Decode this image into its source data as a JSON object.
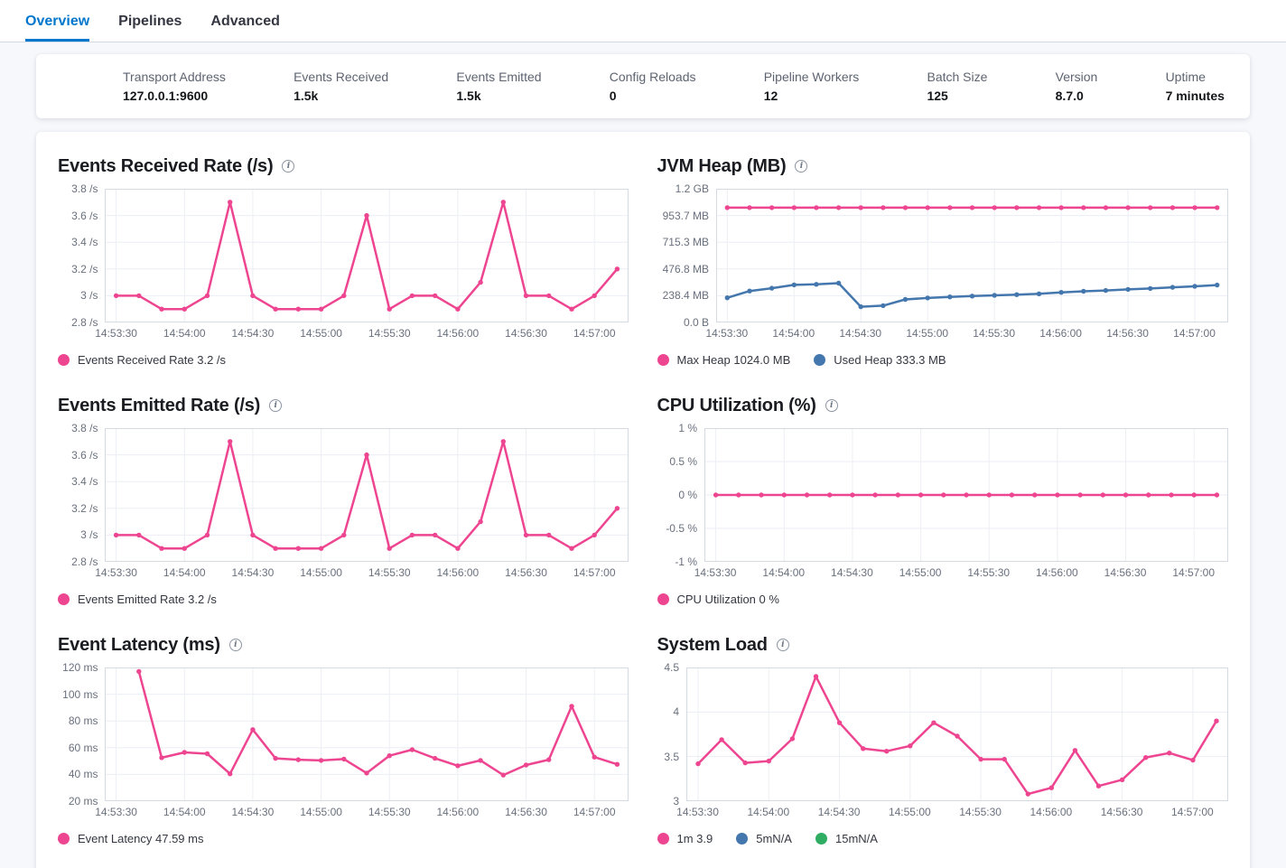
{
  "tabs": [
    {
      "label": "Overview",
      "active": true
    },
    {
      "label": "Pipelines",
      "active": false
    },
    {
      "label": "Advanced",
      "active": false
    }
  ],
  "stats": [
    {
      "label": "Transport Address",
      "value": "127.0.0.1:9600"
    },
    {
      "label": "Events Received",
      "value": "1.5k"
    },
    {
      "label": "Events Emitted",
      "value": "1.5k"
    },
    {
      "label": "Config Reloads",
      "value": "0"
    },
    {
      "label": "Pipeline Workers",
      "value": "12"
    },
    {
      "label": "Batch Size",
      "value": "125"
    },
    {
      "label": "Version",
      "value": "8.7.0"
    },
    {
      "label": "Uptime",
      "value": "7 minutes"
    }
  ],
  "colors": {
    "pink": "#ee4591",
    "blue": "#4477ad",
    "green": "#2fad63",
    "tab_blue": "#0077cc"
  },
  "chart_data": [
    {
      "id": "events-received-rate",
      "type": "line",
      "title": "Events Received Rate (/s)",
      "x_tick_labels": [
        "14:53:30",
        "14:54:00",
        "14:54:30",
        "14:55:00",
        "14:55:30",
        "14:56:00",
        "14:56:30",
        "14:57:00"
      ],
      "x_tick_seconds": [
        0,
        30,
        60,
        90,
        120,
        150,
        180,
        210
      ],
      "x_domain_seconds": [
        -5,
        225
      ],
      "point_interval_seconds": 10,
      "y_domain": [
        2.8,
        3.8
      ],
      "y_ticks": [
        {
          "v": 3.8,
          "label": "3.8 /s"
        },
        {
          "v": 3.6,
          "label": "3.6 /s"
        },
        {
          "v": 3.4,
          "label": "3.4 /s"
        },
        {
          "v": 3.2,
          "label": "3.2 /s"
        },
        {
          "v": 3.0,
          "label": "3 /s"
        },
        {
          "v": 2.8,
          "label": "2.8 /s"
        }
      ],
      "series": [
        {
          "name": "Events Received Rate",
          "color": "pink",
          "start_second": 0,
          "values": [
            3,
            3,
            2.9,
            2.9,
            3,
            3.7,
            3,
            2.9,
            2.9,
            2.9,
            3,
            3.6,
            2.9,
            3,
            3,
            2.9,
            3.1,
            3.7,
            3,
            3,
            2.9,
            3,
            3.2
          ]
        }
      ],
      "legend": [
        {
          "color": "pink",
          "label": "Events Received Rate 3.2 /s"
        }
      ]
    },
    {
      "id": "jvm-heap",
      "type": "line",
      "title": "JVM Heap (MB)",
      "x_tick_labels": [
        "14:53:30",
        "14:54:00",
        "14:54:30",
        "14:55:00",
        "14:55:30",
        "14:56:00",
        "14:56:30",
        "14:57:00"
      ],
      "x_tick_seconds": [
        0,
        30,
        60,
        90,
        120,
        150,
        180,
        210
      ],
      "x_domain_seconds": [
        -5,
        225
      ],
      "point_interval_seconds": 10,
      "y_domain": [
        0,
        1192
      ],
      "y_ticks": [
        {
          "v": 1192,
          "label": "1.2 GB"
        },
        {
          "v": 953.7,
          "label": "953.7 MB"
        },
        {
          "v": 715.3,
          "label": "715.3 MB"
        },
        {
          "v": 476.8,
          "label": "476.8 MB"
        },
        {
          "v": 238.4,
          "label": "238.4 MB"
        },
        {
          "v": 0,
          "label": "0.0 B"
        }
      ],
      "series": [
        {
          "name": "Max Heap",
          "color": "pink",
          "start_second": 0,
          "values": [
            1024,
            1024,
            1024,
            1024,
            1024,
            1024,
            1024,
            1024,
            1024,
            1024,
            1024,
            1024,
            1024,
            1024,
            1024,
            1024,
            1024,
            1024,
            1024,
            1024,
            1024,
            1024,
            1024
          ]
        },
        {
          "name": "Used Heap",
          "color": "blue",
          "start_second": 0,
          "values": [
            220,
            280,
            305,
            335,
            340,
            350,
            140,
            150,
            205,
            218,
            228,
            235,
            242,
            248,
            255,
            268,
            278,
            285,
            295,
            303,
            313,
            322,
            333.3
          ]
        }
      ],
      "legend": [
        {
          "color": "pink",
          "label": "Max Heap 1024.0 MB"
        },
        {
          "color": "blue",
          "label": "Used Heap 333.3 MB"
        }
      ]
    },
    {
      "id": "events-emitted-rate",
      "type": "line",
      "title": "Events Emitted Rate (/s)",
      "x_tick_labels": [
        "14:53:30",
        "14:54:00",
        "14:54:30",
        "14:55:00",
        "14:55:30",
        "14:56:00",
        "14:56:30",
        "14:57:00"
      ],
      "x_tick_seconds": [
        0,
        30,
        60,
        90,
        120,
        150,
        180,
        210
      ],
      "x_domain_seconds": [
        -5,
        225
      ],
      "point_interval_seconds": 10,
      "y_domain": [
        2.8,
        3.8
      ],
      "y_ticks": [
        {
          "v": 3.8,
          "label": "3.8 /s"
        },
        {
          "v": 3.6,
          "label": "3.6 /s"
        },
        {
          "v": 3.4,
          "label": "3.4 /s"
        },
        {
          "v": 3.2,
          "label": "3.2 /s"
        },
        {
          "v": 3.0,
          "label": "3 /s"
        },
        {
          "v": 2.8,
          "label": "2.8 /s"
        }
      ],
      "series": [
        {
          "name": "Events Emitted Rate",
          "color": "pink",
          "start_second": 0,
          "values": [
            3,
            3,
            2.9,
            2.9,
            3,
            3.7,
            3,
            2.9,
            2.9,
            2.9,
            3,
            3.6,
            2.9,
            3,
            3,
            2.9,
            3.1,
            3.7,
            3,
            3,
            2.9,
            3,
            3.2
          ]
        }
      ],
      "legend": [
        {
          "color": "pink",
          "label": "Events Emitted Rate 3.2 /s"
        }
      ]
    },
    {
      "id": "cpu-utilization",
      "type": "line",
      "title": "CPU Utilization (%)",
      "x_tick_labels": [
        "14:53:30",
        "14:54:00",
        "14:54:30",
        "14:55:00",
        "14:55:30",
        "14:56:00",
        "14:56:30",
        "14:57:00"
      ],
      "x_tick_seconds": [
        0,
        30,
        60,
        90,
        120,
        150,
        180,
        210
      ],
      "x_domain_seconds": [
        -5,
        225
      ],
      "point_interval_seconds": 10,
      "y_domain": [
        -1,
        1
      ],
      "y_ticks": [
        {
          "v": 1,
          "label": "1 %"
        },
        {
          "v": 0.5,
          "label": "0.5 %"
        },
        {
          "v": 0,
          "label": "0 %"
        },
        {
          "v": -0.5,
          "label": "-0.5 %"
        },
        {
          "v": -1,
          "label": "-1 %"
        }
      ],
      "series": [
        {
          "name": "CPU Utilization",
          "color": "pink",
          "start_second": 0,
          "values": [
            0,
            0,
            0,
            0,
            0,
            0,
            0,
            0,
            0,
            0,
            0,
            0,
            0,
            0,
            0,
            0,
            0,
            0,
            0,
            0,
            0,
            0,
            0
          ]
        }
      ],
      "legend": [
        {
          "color": "pink",
          "label": "CPU Utilization 0 %"
        }
      ]
    },
    {
      "id": "event-latency",
      "type": "line",
      "title": "Event Latency (ms)",
      "x_tick_labels": [
        "14:53:30",
        "14:54:00",
        "14:54:30",
        "14:55:00",
        "14:55:30",
        "14:56:00",
        "14:56:30",
        "14:57:00"
      ],
      "x_tick_seconds": [
        0,
        30,
        60,
        90,
        120,
        150,
        180,
        210
      ],
      "x_domain_seconds": [
        -5,
        225
      ],
      "point_interval_seconds": 10,
      "y_domain": [
        20,
        120
      ],
      "y_ticks": [
        {
          "v": 120,
          "label": "120 ms"
        },
        {
          "v": 100,
          "label": "100 ms"
        },
        {
          "v": 80,
          "label": "80 ms"
        },
        {
          "v": 60,
          "label": "60 ms"
        },
        {
          "v": 40,
          "label": "40 ms"
        },
        {
          "v": 20,
          "label": "20 ms"
        }
      ],
      "series": [
        {
          "name": "Event Latency",
          "color": "pink",
          "start_second": 10,
          "values": [
            117,
            52.5,
            56.5,
            55.5,
            40.5,
            73.5,
            52,
            51,
            50.5,
            51.5,
            41,
            54,
            58.5,
            52,
            46.5,
            50.5,
            39.5,
            47,
            51,
            91,
            53,
            47.59
          ]
        }
      ],
      "legend": [
        {
          "color": "pink",
          "label": "Event Latency 47.59 ms"
        }
      ]
    },
    {
      "id": "system-load",
      "type": "line",
      "title": "System Load",
      "x_tick_labels": [
        "14:53:30",
        "14:54:00",
        "14:54:30",
        "14:55:00",
        "14:55:30",
        "14:56:00",
        "14:56:30",
        "14:57:00"
      ],
      "x_tick_seconds": [
        0,
        30,
        60,
        90,
        120,
        150,
        180,
        210
      ],
      "x_domain_seconds": [
        -5,
        225
      ],
      "point_interval_seconds": 10,
      "y_domain": [
        3,
        4.5
      ],
      "y_ticks": [
        {
          "v": 4.5,
          "label": "4.5"
        },
        {
          "v": 4,
          "label": "4"
        },
        {
          "v": 3.5,
          "label": "3.5"
        },
        {
          "v": 3,
          "label": "3"
        }
      ],
      "series": [
        {
          "name": "1m",
          "color": "pink",
          "start_second": 0,
          "values": [
            3.42,
            3.69,
            3.43,
            3.45,
            3.7,
            4.4,
            3.88,
            3.59,
            3.56,
            3.62,
            3.88,
            3.73,
            3.47,
            3.47,
            3.08,
            3.15,
            3.57,
            3.17,
            3.24,
            3.49,
            3.54,
            3.46,
            3.9
          ]
        }
      ],
      "legend": [
        {
          "color": "pink",
          "label": "1m 3.9"
        },
        {
          "color": "blue",
          "label": "5mN/A"
        },
        {
          "color": "green",
          "label": "15mN/A"
        }
      ]
    }
  ]
}
